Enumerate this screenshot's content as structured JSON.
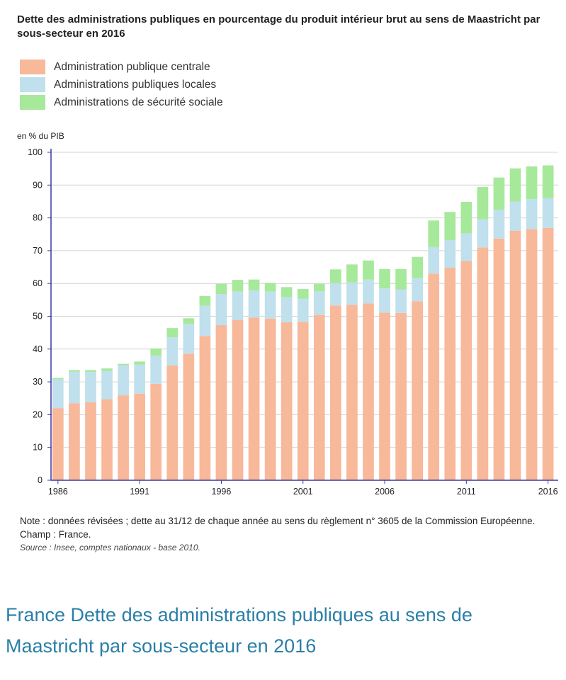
{
  "title": "Dette des administrations publiques en pourcentage du produit intérieur brut au sens de Maastricht par sous-secteur en 2016",
  "notes": {
    "line1": "Note : données révisées ; dette au 31/12 de chaque année au sens du règlement n° 3605 de la Commission Européenne.",
    "line2": "Champ : France.",
    "source": "Source : Insee, comptes nationaux - base 2010."
  },
  "caption": {
    "line1": "France Dette des administrations publiques au sens de",
    "line2": "Maastricht par sous-secteur en 2016"
  },
  "colors": {
    "central": "#f8b89a",
    "local": "#bfe0ec",
    "social": "#a6e99a",
    "axis": "#3a3aa0",
    "grid": "#d4d4d4"
  },
  "chart_data": {
    "type": "bar",
    "stacked": true,
    "ylabel": "en % du PIB",
    "ylim": [
      0,
      100
    ],
    "yticks": [
      0,
      10,
      20,
      30,
      40,
      50,
      60,
      70,
      80,
      90,
      100
    ],
    "xtick_labels": [
      "1986",
      "1991",
      "1996",
      "2001",
      "2006",
      "2011",
      "2016"
    ],
    "grid": true,
    "legend_position": "top-left",
    "categories": [
      1986,
      1987,
      1988,
      1989,
      1990,
      1991,
      1992,
      1993,
      1994,
      1995,
      1996,
      1997,
      1998,
      1999,
      2000,
      2001,
      2002,
      2003,
      2004,
      2005,
      2006,
      2007,
      2008,
      2009,
      2010,
      2011,
      2012,
      2013,
      2014,
      2015,
      2016
    ],
    "series": [
      {
        "name": "Administration publique centrale",
        "color_key": "central",
        "values": [
          22,
          23.5,
          23.8,
          24.7,
          25.9,
          26.4,
          29.4,
          35,
          38.6,
          44,
          47.3,
          48.9,
          49.6,
          49.3,
          48.2,
          48.3,
          50.4,
          53.3,
          53.5,
          53.9,
          51.1,
          51,
          54.6,
          63,
          64.8,
          66.9,
          71,
          73.7,
          76.1,
          76.6,
          76.9
        ]
      },
      {
        "name": "Administrations publiques locales",
        "color_key": "local",
        "values": [
          8.8,
          9.6,
          9.2,
          8.6,
          9.2,
          8.9,
          8.6,
          8.6,
          9.1,
          9.2,
          9.5,
          8.6,
          8.3,
          8.2,
          7.6,
          7.1,
          7.2,
          6.8,
          6.8,
          7.3,
          7.4,
          7.2,
          7.1,
          8.1,
          8.4,
          8.4,
          8.6,
          8.8,
          8.9,
          9.1,
          9.1
        ]
      },
      {
        "name": "Administrations de sécurité sociale",
        "color_key": "social",
        "values": [
          0.4,
          0.5,
          0.6,
          0.8,
          0.4,
          0.9,
          2.2,
          2.8,
          1.7,
          3,
          3.1,
          3.6,
          3.3,
          2.7,
          3.1,
          2.9,
          2.3,
          4.2,
          5.5,
          5.8,
          5.9,
          6.2,
          6.4,
          8.1,
          8.6,
          9.6,
          9.8,
          9.8,
          10.1,
          10,
          10
        ]
      }
    ]
  }
}
